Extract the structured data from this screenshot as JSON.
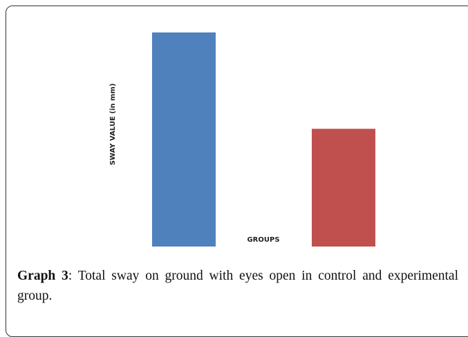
{
  "chart_data": {
    "type": "bar",
    "ylabel": "SWAY VALUE (in mm)",
    "xlabel": "GROUPS",
    "categories": [
      null,
      null
    ],
    "values": [
      100,
      55
    ],
    "colors": [
      "#4f81bd",
      "#c0504d"
    ],
    "ylim": [
      0,
      100
    ],
    "grid": false
  },
  "caption": {
    "label": "Graph 3",
    "text": ": Total sway on ground with eyes open in control and experimental group."
  }
}
